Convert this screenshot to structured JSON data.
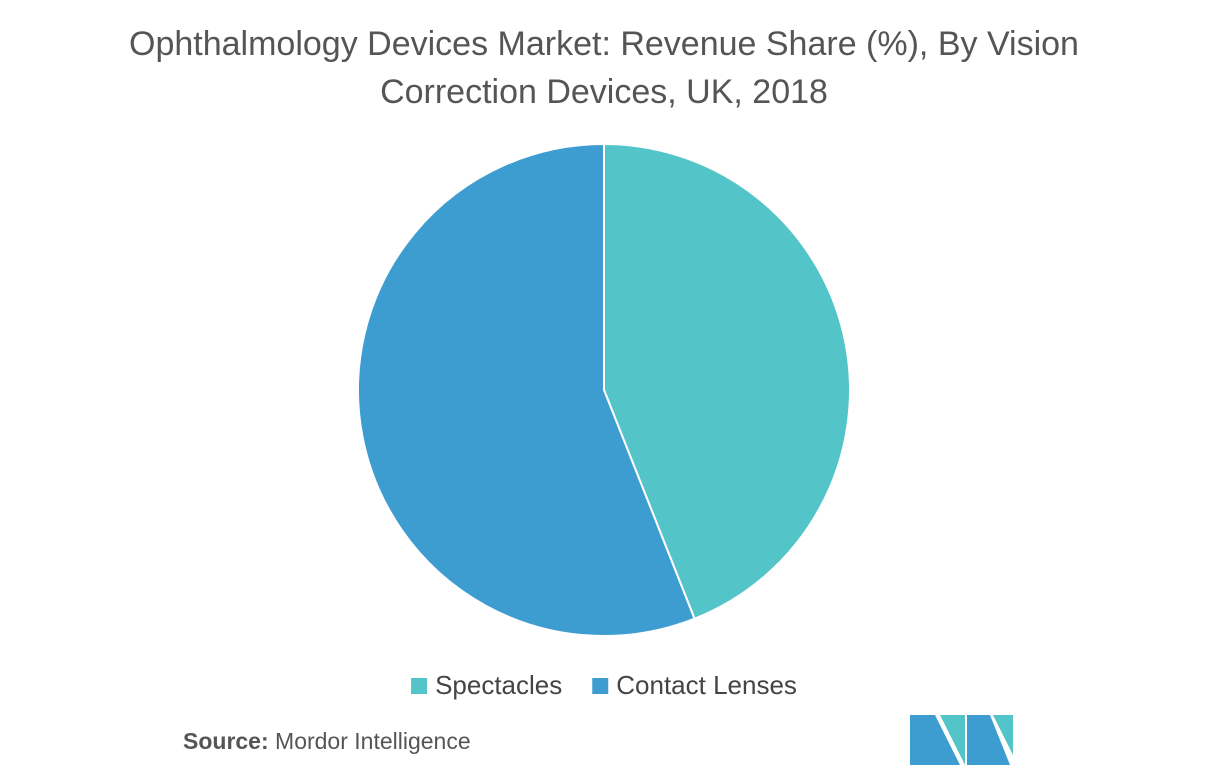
{
  "chart_data": {
    "type": "pie",
    "title": "Ophthalmology Devices Market: Revenue Share (%), By Vision Correction Devices, UK, 2018",
    "categories": [
      "Spectacles",
      "Contact Lenses"
    ],
    "values": [
      44,
      56
    ],
    "colors": [
      "#53c4c8",
      "#3d9dd0"
    ],
    "source_label": "Source:",
    "source": "Mordor Intelligence"
  }
}
